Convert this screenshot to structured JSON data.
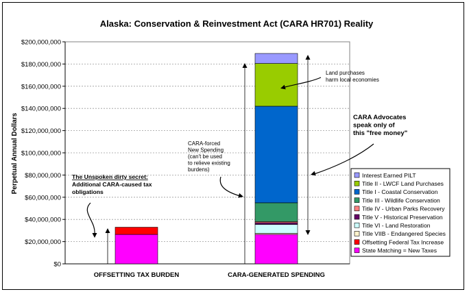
{
  "chart_data": {
    "type": "bar",
    "stacked": true,
    "title": "Alaska:  Conservation & Reinvestment Act (CARA HR701) Reality",
    "ylabel": "Perpetual Annual Dollars",
    "xlabel": "",
    "ylim": [
      0,
      200000000
    ],
    "yticks": [
      "$0",
      "$20,000,000",
      "$40,000,000",
      "$60,000,000",
      "$80,000,000",
      "$100,000,000",
      "$120,000,000",
      "$140,000,000",
      "$160,000,000",
      "$180,000,000",
      "$200,000,000"
    ],
    "grid": true,
    "legend_position": "right",
    "categories": [
      "OFFSETTING TAX BURDEN",
      "CARA-GENERATED SPENDING"
    ],
    "series": [
      {
        "name": "State Matching = New Taxes",
        "color": "#ff00ff",
        "values": [
          26500000,
          26500000
        ]
      },
      {
        "name": "Offsetting Federal Tax Increase",
        "color": "#ff0000",
        "values": [
          6500000,
          0
        ]
      },
      {
        "name": "Title VIIB - Endangered Species",
        "color": "#fff2cc",
        "values": [
          0,
          1000000
        ]
      },
      {
        "name": "Title VI - Land Restoration",
        "color": "#ccffff",
        "values": [
          0,
          8000000
        ]
      },
      {
        "name": "Title V - Historical Preservation",
        "color": "#660066",
        "values": [
          0,
          1500000
        ]
      },
      {
        "name": "Title IV - Urban Parks Recovery",
        "color": "#ff8080",
        "values": [
          0,
          1000000
        ]
      },
      {
        "name": "Title III - Wildlife Conservation",
        "color": "#339966",
        "values": [
          0,
          17000000
        ]
      },
      {
        "name": "Title I - Coastal Conservation",
        "color": "#0066cc",
        "values": [
          0,
          87000000
        ]
      },
      {
        "name": "Title II - LWCF Land Purchases",
        "color": "#99cc00",
        "values": [
          0,
          38500000
        ]
      },
      {
        "name": "Interest Earned PILT",
        "color": "#9999ff",
        "values": [
          0,
          9000000
        ]
      }
    ],
    "legend": [
      {
        "name": "Interest Earned PILT",
        "color": "#9999ff"
      },
      {
        "name": "Title II - LWCF Land Purchases",
        "color": "#99cc00"
      },
      {
        "name": "Title I - Coastal Conservation",
        "color": "#0066cc"
      },
      {
        "name": "Title III - Wildlife Conservation",
        "color": "#339966"
      },
      {
        "name": "Title IV - Urban Parks Recovery",
        "color": "#ff8080"
      },
      {
        "name": "Title V - Historical Preservation",
        "color": "#660066"
      },
      {
        "name": "Title VI - Land Restoration",
        "color": "#ccffff"
      },
      {
        "name": "Title VIIB - Endangered Species",
        "color": "#fff2cc"
      },
      {
        "name": "Offsetting Federal Tax Increase",
        "color": "#ff0000"
      },
      {
        "name": "State Matching = New Taxes",
        "color": "#ff00ff"
      }
    ],
    "annotations": [
      {
        "id": "land",
        "lines": [
          "Land purchases",
          "harm local economies"
        ],
        "bold": false
      },
      {
        "id": "advocates",
        "lines": [
          "CARA Advocates",
          "speak only of",
          "this \"free money\""
        ],
        "bold": true
      },
      {
        "id": "forced",
        "lines": [
          "CARA-forced",
          "New Spending",
          "(can't be used",
          "to relieve existing",
          "burdens)"
        ],
        "bold": false
      },
      {
        "id": "secret",
        "lines": [
          "The Unspoken dirty secret:",
          "Additional CARA-caused tax",
          "obligations"
        ],
        "bold": true
      }
    ]
  }
}
